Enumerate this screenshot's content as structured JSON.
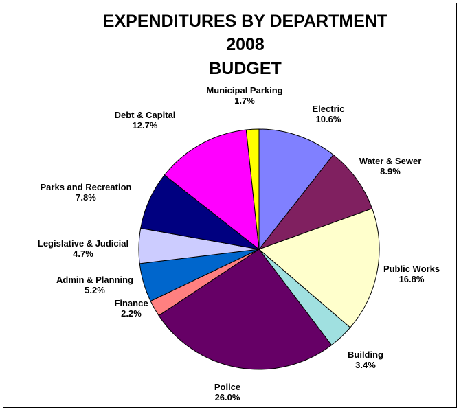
{
  "chart_data": {
    "type": "pie",
    "title_lines": [
      "EXPENDITURES  BY DEPARTMENT",
      "2008",
      "BUDGET"
    ],
    "slices": [
      {
        "name": "Electric",
        "value_label": "10.6%",
        "value": 10.6,
        "color": "#8080FF"
      },
      {
        "name": "Water & Sewer",
        "value_label": "8.9%",
        "value": 8.9,
        "color": "#802060"
      },
      {
        "name": "Public Works",
        "value_label": "16.8%",
        "value": 16.8,
        "color": "#FFFFCC"
      },
      {
        "name": "Building",
        "value_label": "3.4%",
        "value": 3.4,
        "color": "#A0E0E0"
      },
      {
        "name": "Police",
        "value_label": "26.0%",
        "value": 26.0,
        "color": "#660066"
      },
      {
        "name": "Finance",
        "value_label": "2.2%",
        "value": 2.2,
        "color": "#FF8080"
      },
      {
        "name": "Admin & Planning",
        "value_label": "5.2%",
        "value": 5.2,
        "color": "#0066CC"
      },
      {
        "name": "Legislative  & Judicial",
        "value_label": "4.7%",
        "value": 4.7,
        "color": "#CCCCFF"
      },
      {
        "name": "Parks and Recreation",
        "value_label": "7.8%",
        "value": 7.8,
        "color": "#000080"
      },
      {
        "name": "Debt & Capital",
        "value_label": "12.7%",
        "value": 12.7,
        "color": "#FF00FF"
      },
      {
        "name": "Municipal Parking",
        "value_label": "1.7%",
        "value": 1.7,
        "color": "#FFFF00"
      }
    ],
    "start_angle": "12 o'clock",
    "direction": "clockwise",
    "labels": "outside",
    "legend": "none"
  }
}
